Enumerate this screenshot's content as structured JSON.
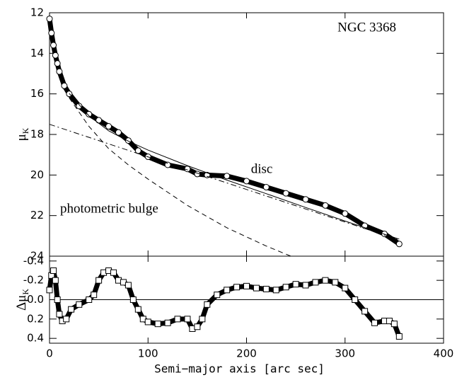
{
  "chart_data": [
    {
      "type": "line",
      "invert_y": true,
      "show_xtick_labels": false,
      "xlim": [
        0,
        400
      ],
      "xticks": [
        0,
        100,
        200,
        300,
        400
      ],
      "ylim": [
        12,
        24
      ],
      "yticks": [
        12,
        14,
        16,
        18,
        20,
        22,
        24
      ],
      "ylabel": {
        "symbol": "μ",
        "subscript": "K"
      },
      "annotations": [
        "NGC 3368",
        "disc",
        "photometric bulge"
      ],
      "series": [
        {
          "style": "markers",
          "color": "#000000",
          "x": [
            0,
            2,
            4,
            6,
            8,
            10,
            15,
            20,
            30,
            40,
            50,
            60,
            70,
            80,
            90,
            100,
            120,
            140,
            150,
            160,
            180,
            200,
            220,
            240,
            260,
            280,
            300,
            320,
            340,
            355
          ],
          "values": [
            12.3,
            13.0,
            13.6,
            14.1,
            14.5,
            14.9,
            15.6,
            16.0,
            16.6,
            17.0,
            17.3,
            17.6,
            17.9,
            18.3,
            18.8,
            19.1,
            19.5,
            19.7,
            19.95,
            20.0,
            20.05,
            20.3,
            20.6,
            20.9,
            21.2,
            21.5,
            21.9,
            22.5,
            22.9,
            23.4
          ]
        },
        {
          "style": "solid",
          "color": "#000000",
          "x": [
            20,
            40,
            60,
            80,
            100,
            140,
            180,
            220,
            260,
            300,
            355
          ],
          "values": [
            15.98,
            17.08,
            17.82,
            18.33,
            18.77,
            19.54,
            20.25,
            20.92,
            21.6,
            22.27,
            23.16
          ]
        },
        {
          "style": "dashed",
          "color": "#000000",
          "x": [
            20,
            40,
            60,
            80,
            100,
            140,
            180,
            220,
            245
          ],
          "values": [
            16.2,
            17.6,
            18.7,
            19.5,
            20.2,
            21.5,
            22.6,
            23.5,
            24.0
          ]
        },
        {
          "style": "dashdot",
          "color": "#000000",
          "x": [
            0,
            355
          ],
          "values": [
            17.5,
            23.2
          ]
        }
      ]
    },
    {
      "type": "line",
      "invert_y": true,
      "show_xtick_labels": true,
      "xlim": [
        0,
        400
      ],
      "xticks": [
        0,
        100,
        200,
        300,
        400
      ],
      "xlabel": "Semi−major axis [arc sec]",
      "ylim": [
        -0.45,
        0.45
      ],
      "yticks": [
        {
          "value": -0.4,
          "label": "-0.4"
        },
        {
          "value": -0.2,
          "label": "-0.2"
        },
        {
          "value": 0,
          "label": "0.0"
        },
        {
          "value": 0.2,
          "label": "0.2"
        },
        {
          "value": 0.4,
          "label": "0.4"
        }
      ],
      "ylabel": {
        "symbol": "Δμ",
        "subscript": "K"
      },
      "hline": 0,
      "series": [
        {
          "style": "squares",
          "color": "#000000",
          "x": [
            0,
            2,
            4,
            6,
            8,
            10,
            13,
            17,
            22,
            30,
            40,
            45,
            50,
            55,
            60,
            65,
            70,
            75,
            80,
            85,
            90,
            95,
            100,
            110,
            120,
            130,
            140,
            145,
            150,
            155,
            160,
            170,
            180,
            190,
            200,
            210,
            220,
            230,
            240,
            250,
            260,
            270,
            280,
            290,
            300,
            310,
            320,
            330,
            340,
            345,
            350,
            355
          ],
          "values": [
            -0.1,
            -0.25,
            -0.3,
            -0.2,
            0.0,
            0.15,
            0.22,
            0.2,
            0.1,
            0.05,
            0.0,
            -0.05,
            -0.2,
            -0.28,
            -0.3,
            -0.28,
            -0.2,
            -0.18,
            -0.15,
            0.0,
            0.1,
            0.2,
            0.23,
            0.25,
            0.24,
            0.2,
            0.2,
            0.3,
            0.28,
            0.2,
            0.05,
            -0.05,
            -0.1,
            -0.13,
            -0.14,
            -0.12,
            -0.11,
            -0.1,
            -0.13,
            -0.16,
            -0.15,
            -0.18,
            -0.2,
            -0.18,
            -0.12,
            0.0,
            0.12,
            0.24,
            0.22,
            0.22,
            0.25,
            0.38
          ]
        }
      ]
    }
  ]
}
